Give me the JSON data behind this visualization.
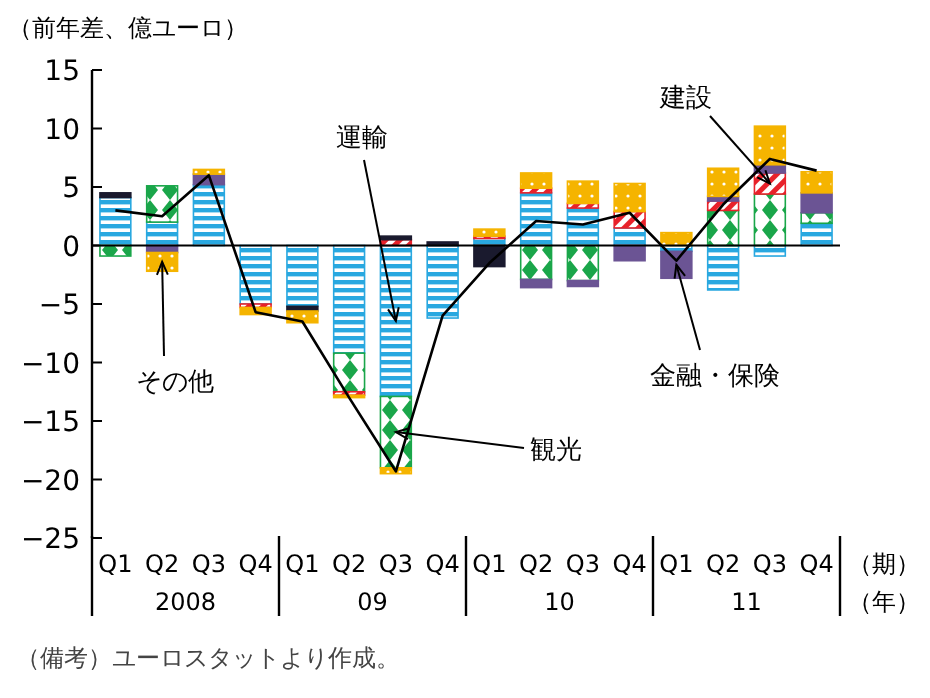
{
  "chart_data": {
    "type": "bar",
    "stacked": true,
    "ylabel": "（前年差、億ユーロ）",
    "xlabel": "（期）",
    "categories": [
      "Q1",
      "Q2",
      "Q3",
      "Q4",
      "Q1",
      "Q2",
      "Q3",
      "Q4",
      "Q1",
      "Q2",
      "Q3",
      "Q4",
      "Q1",
      "Q2",
      "Q3",
      "Q4"
    ],
    "ylim": [
      -25,
      15
    ],
    "yticks": [
      {
        "value": -25,
        "label": "−25"
      },
      {
        "value": -20,
        "label": "−20"
      },
      {
        "value": -15,
        "label": "−15"
      },
      {
        "value": -10,
        "label": "−10"
      },
      {
        "value": -5,
        "label": "−5"
      },
      0,
      5,
      10,
      15
    ],
    "series": [
      {
        "name": "運輸",
        "color": "#29a8e0",
        "values": [
          4.1,
          2.0,
          5.2,
          -5.0,
          -5.2,
          -9.2,
          -12.9,
          -6.2,
          0.6,
          4.5,
          3.2,
          1.5,
          -0.5,
          -3.8,
          -0.9,
          1.9
        ]
      },
      {
        "name": "観光",
        "color": "#1aa64a",
        "values": [
          -0.9,
          3.1,
          null,
          null,
          null,
          -3.3,
          -6.1,
          null,
          null,
          -2.9,
          -3.0,
          null,
          null,
          3.0,
          4.4,
          0.9
        ]
      },
      {
        "name": "建設",
        "color": "#e8212a",
        "values": [
          null,
          null,
          null,
          -0.3,
          null,
          -0.3,
          0.5,
          null,
          0.2,
          0.4,
          0.4,
          1.4,
          null,
          0.8,
          1.8,
          null
        ]
      },
      {
        "color": "#1a1a2e",
        "values": [
          0.4,
          null,
          null,
          null,
          -0.4,
          null,
          0.3,
          0.3,
          -1.8,
          null,
          null,
          null,
          null,
          null,
          null,
          null
        ]
      },
      {
        "name": "金融・保険",
        "color": "#6b5494",
        "values": [
          null,
          -0.6,
          0.9,
          null,
          null,
          null,
          null,
          null,
          null,
          -0.7,
          -0.5,
          -1.3,
          -2.3,
          0.4,
          0.7,
          1.7
        ]
      },
      {
        "name": "その他",
        "color": "#f5b400",
        "values": [
          null,
          -1.6,
          0.4,
          -0.6,
          -1.0,
          -0.2,
          -0.5,
          null,
          0.6,
          1.3,
          1.9,
          2.4,
          1.1,
          2.4,
          3.3,
          1.8
        ]
      },
      {
        "type": "line",
        "color": "#000000",
        "values": [
          3.0,
          2.5,
          6.0,
          -5.7,
          -6.5,
          -13.0,
          -19.3,
          -6.0,
          -1.5,
          2.1,
          1.8,
          2.8,
          -1.3,
          3.5,
          7.4,
          6.4
        ]
      }
    ],
    "annotations": [
      "2008",
      "09",
      "10",
      "11",
      "（年）",
      "（備考）ユーロスタットより作成。"
    ]
  }
}
